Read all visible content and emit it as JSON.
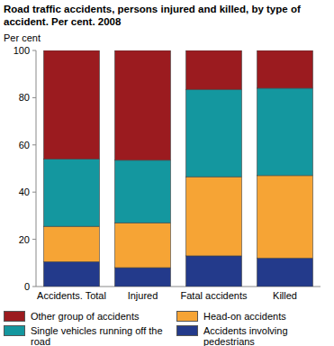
{
  "chart_data": {
    "type": "bar",
    "stacked": true,
    "grid": false,
    "title": "Road traffic accidents, persons injured and killed, by type of accident. Per cent. 2008",
    "y_label": "Per cent",
    "categories": [
      "Accidents. Total",
      "Injured",
      "Fatal accidents",
      "Killed"
    ],
    "series": [
      {
        "name": "Accidents involving pedestrians",
        "color": "#233a8b",
        "values": [
          10.5,
          8,
          13,
          12
        ]
      },
      {
        "name": "Head-on accidents",
        "color": "#f6a435",
        "values": [
          15,
          19,
          33.5,
          35
        ]
      },
      {
        "name": "Single vehicles running off the road",
        "color": "#14979f",
        "values": [
          28.5,
          26.5,
          37,
          37
        ]
      },
      {
        "name": "Other group of accidents",
        "color": "#9b1b1f",
        "values": [
          46,
          46.5,
          16.5,
          16
        ]
      }
    ],
    "ylim": [
      0,
      100
    ],
    "yticks": [
      0,
      20,
      40,
      60,
      80,
      100
    ]
  }
}
